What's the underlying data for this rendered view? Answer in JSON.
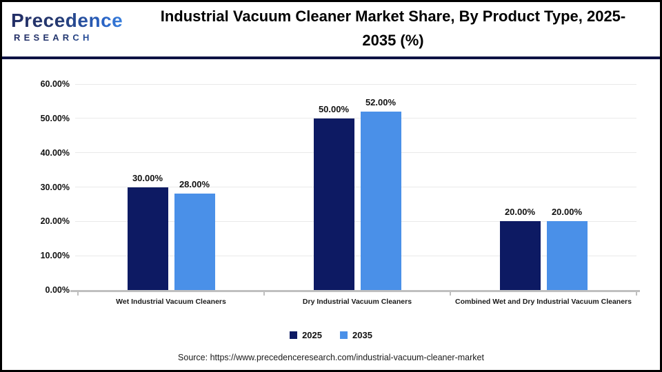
{
  "header": {
    "logo_primary": "Precedence",
    "logo_secondary": "RESEARCH",
    "title": "Industrial Vacuum Cleaner Market Share, By Product Type, 2025-2035 (%)"
  },
  "colors": {
    "series_2025": "#0d1a63",
    "series_2035": "#4a90e8",
    "divider": "#0d1243",
    "axis": "#bfbfbf",
    "gridline": "#e9e9e9"
  },
  "chart_data": {
    "type": "bar",
    "title": "Industrial Vacuum Cleaner Market Share, By Product Type, 2025-2035 (%)",
    "categories": [
      "Wet Industrial Vacuum Cleaners",
      "Dry Industrial Vacuum Cleaners",
      "Combined Wet and Dry Industrial Vacuum Cleaners"
    ],
    "series": [
      {
        "name": "2025",
        "color": "#0d1a63",
        "values": [
          30,
          50,
          20
        ],
        "labels": [
          "30.00%",
          "50.00%",
          "20.00%"
        ]
      },
      {
        "name": "2035",
        "color": "#4a90e8",
        "values": [
          28,
          52,
          20
        ],
        "labels": [
          "28.00%",
          "52.00%",
          "20.00%"
        ]
      }
    ],
    "ylim": [
      0,
      60
    ],
    "ytick_step": 10,
    "ytick_labels": [
      "0.00%",
      "10.00%",
      "20.00%",
      "30.00%",
      "40.00%",
      "50.00%",
      "60.00%"
    ],
    "grid": true,
    "legend_position": "bottom"
  },
  "footer": {
    "source": "Source: https://www.precedenceresearch.com/industrial-vacuum-cleaner-market"
  }
}
